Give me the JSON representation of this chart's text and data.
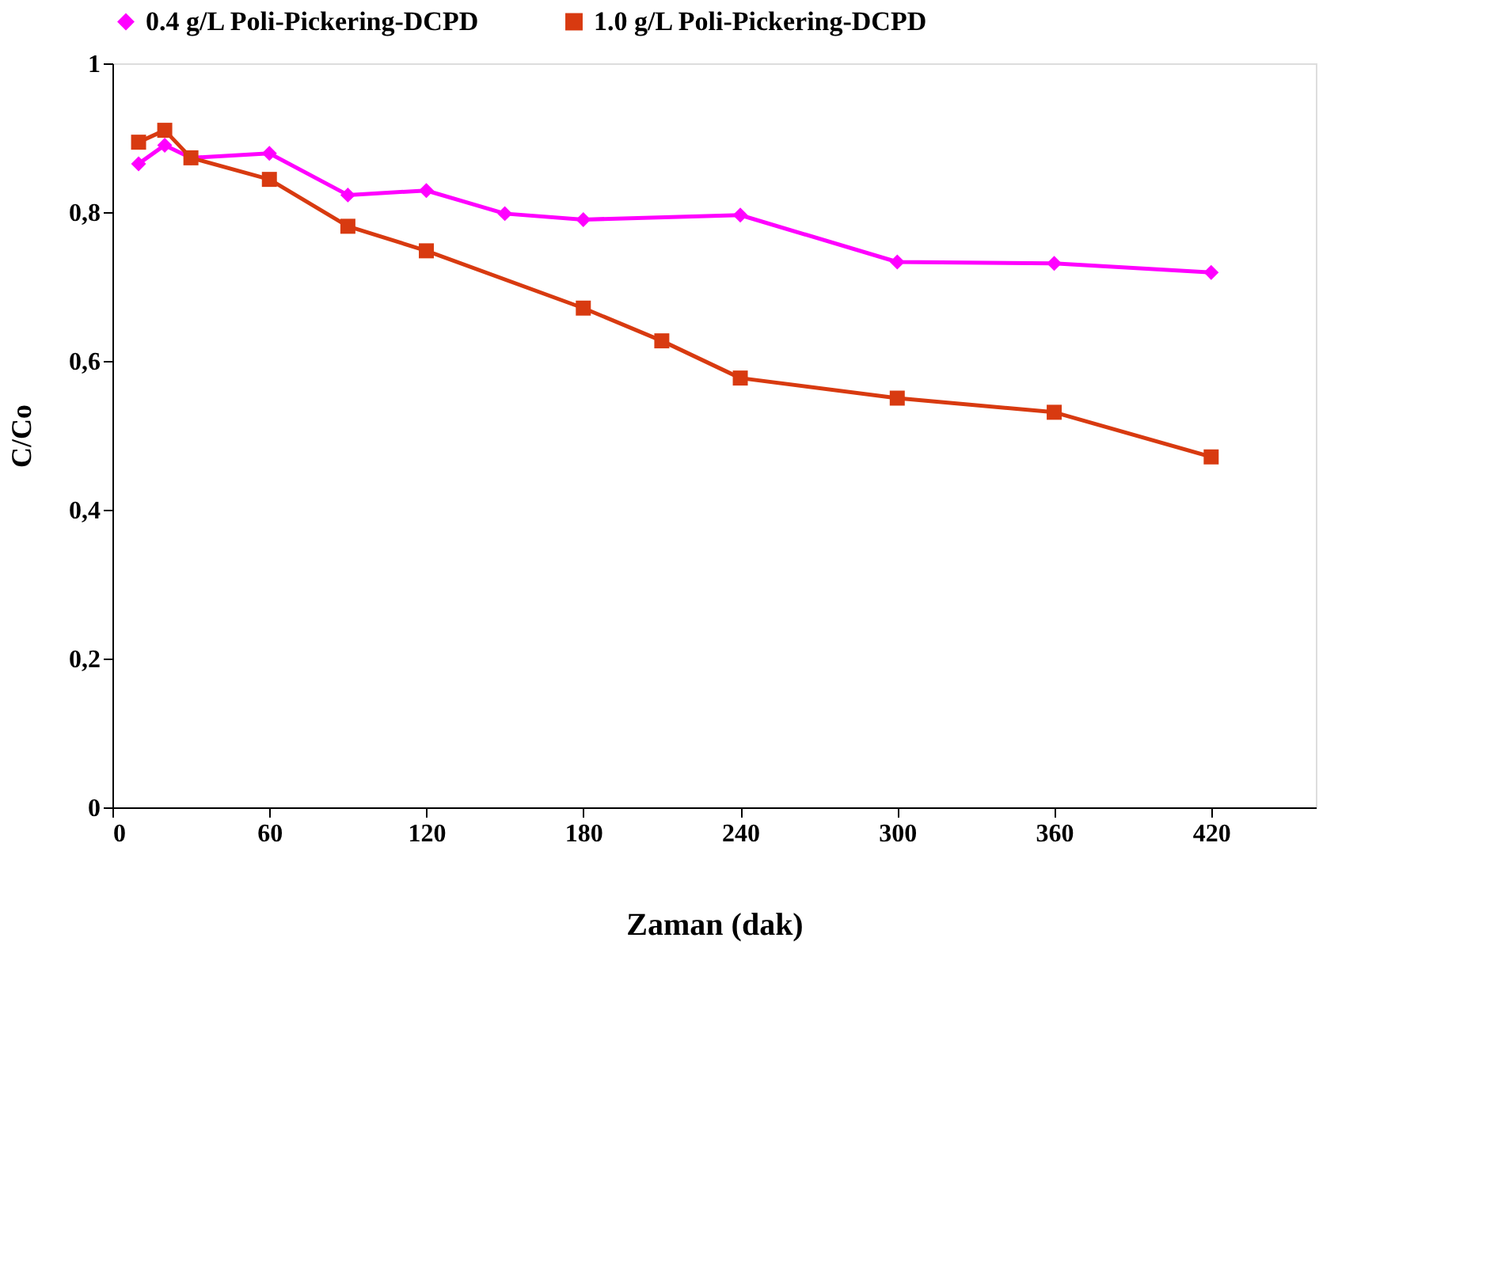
{
  "chart_data": {
    "type": "line",
    "xlabel": "Zaman (dak)",
    "ylabel": "C/Co",
    "xlim": [
      0,
      460
    ],
    "xticks": [
      0,
      60,
      120,
      180,
      240,
      300,
      360,
      420
    ],
    "ylim": [
      0,
      1
    ],
    "yticks": [
      0,
      {
        "value": 0.2,
        "label": "0,2"
      },
      {
        "value": 0.4,
        "label": "0,4"
      },
      {
        "value": 0.6,
        "label": "0,6"
      },
      {
        "value": 0.8,
        "label": "0,8"
      },
      1
    ],
    "grid": false,
    "legend": "top",
    "line_style": "solid",
    "series": [
      {
        "name": "0.4 g/L Poli-Pickering-DCPD",
        "color": "#ff00ff",
        "marker": "diamond",
        "x": [
          10,
          20,
          30,
          60,
          90,
          120,
          150,
          180,
          240,
          300,
          360,
          420
        ],
        "values": [
          0.865,
          0.89,
          0.873,
          0.879,
          0.823,
          0.829,
          0.798,
          0.79,
          0.796,
          0.733,
          0.731,
          0.719
        ]
      },
      {
        "name": "1.0 g/L Poli-Pickering-DCPD",
        "color": "#d83a10",
        "marker": "square",
        "x": [
          10,
          20,
          30,
          60,
          90,
          120,
          180,
          210,
          240,
          300,
          360,
          420
        ],
        "values": [
          0.894,
          0.91,
          0.873,
          0.844,
          0.781,
          0.748,
          0.671,
          0.627,
          0.577,
          0.55,
          0.531,
          0.471
        ]
      }
    ]
  }
}
